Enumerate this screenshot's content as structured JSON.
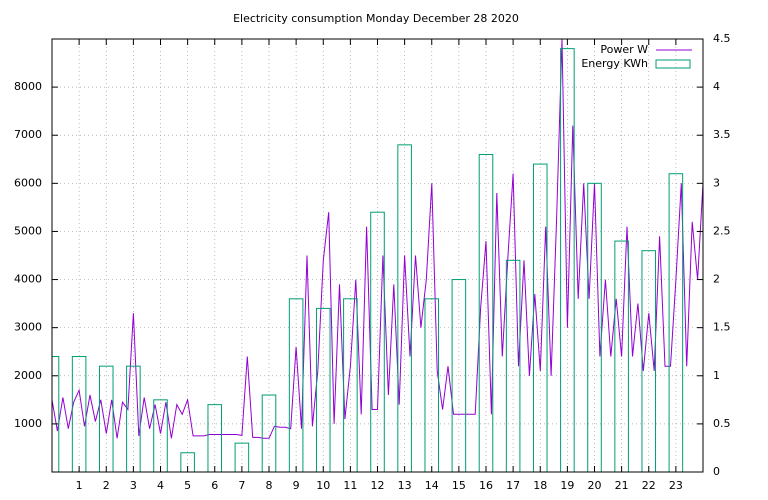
{
  "chart_data": {
    "type": "line",
    "title": "Electricity consumption Monday December 28 2020",
    "xlim": [
      0,
      24
    ],
    "xticks": [
      1,
      2,
      3,
      4,
      5,
      6,
      7,
      8,
      9,
      10,
      11,
      12,
      13,
      14,
      15,
      16,
      17,
      18,
      19,
      20,
      21,
      22,
      23
    ],
    "ylim": [
      0,
      9000
    ],
    "yticks": [
      1000,
      2000,
      3000,
      4000,
      5000,
      6000,
      7000,
      8000
    ],
    "y2lim": [
      0,
      4.5
    ],
    "y2ticks": [
      0,
      0.5,
      1,
      1.5,
      2,
      2.5,
      3,
      3.5,
      4,
      4.5
    ],
    "grid": true,
    "legend": "top-right",
    "series": [
      {
        "name": "Power W",
        "color": "#9400d3",
        "x": [
          0,
          0.2,
          0.4,
          0.6,
          0.8,
          1,
          1.2,
          1.4,
          1.6,
          1.8,
          2,
          2.2,
          2.4,
          2.6,
          2.8,
          3,
          3.2,
          3.4,
          3.6,
          3.8,
          4,
          4.2,
          4.4,
          4.6,
          4.8,
          5,
          5.2,
          5.4,
          5.6,
          5.8,
          6,
          6.2,
          6.4,
          6.6,
          6.8,
          7,
          7.2,
          7.4,
          7.6,
          7.8,
          8,
          8.2,
          8.4,
          8.6,
          8.8,
          9,
          9.2,
          9.4,
          9.6,
          9.8,
          10,
          10.2,
          10.4,
          10.6,
          10.8,
          11,
          11.2,
          11.4,
          11.6,
          11.8,
          12,
          12.2,
          12.4,
          12.6,
          12.8,
          13,
          13.2,
          13.4,
          13.6,
          13.8,
          14,
          14.2,
          14.4,
          14.6,
          14.8,
          15,
          15.2,
          15.4,
          15.6,
          15.8,
          16,
          16.2,
          16.4,
          16.6,
          16.8,
          17,
          17.2,
          17.4,
          17.6,
          17.8,
          18,
          18.2,
          18.4,
          18.6,
          18.8,
          19,
          19.2,
          19.4,
          19.6,
          19.8,
          20,
          20.2,
          20.4,
          20.6,
          20.8,
          21,
          21.2,
          21.4,
          21.6,
          21.8,
          22,
          22.2,
          22.4,
          22.6,
          22.8,
          23,
          23.2,
          23.4,
          23.6,
          23.8,
          24
        ],
        "values": [
          1500,
          850,
          1550,
          900,
          1450,
          1700,
          950,
          1600,
          1050,
          1500,
          800,
          1500,
          700,
          1450,
          1300,
          3300,
          750,
          1550,
          900,
          1400,
          800,
          1450,
          700,
          1400,
          1200,
          1500,
          750,
          750,
          750,
          780,
          780,
          780,
          780,
          780,
          780,
          760,
          2400,
          720,
          720,
          700,
          700,
          950,
          930,
          930,
          900,
          2600,
          900,
          4500,
          950,
          2100,
          4400,
          5400,
          1000,
          3900,
          1100,
          2200,
          4000,
          1200,
          5100,
          1300,
          1300,
          4500,
          1600,
          3900,
          1400,
          4500,
          2400,
          4500,
          3000,
          4000,
          6000,
          2100,
          1300,
          2200,
          1200,
          1200,
          1200,
          1200,
          1200,
          3400,
          4800,
          1200,
          5800,
          2400,
          4400,
          6200,
          2200,
          4400,
          2000,
          3700,
          2100,
          5100,
          2000,
          5200,
          9000,
          3000,
          7200,
          3600,
          6000,
          3600,
          6000,
          2400,
          4000,
          2400,
          3600,
          2400,
          5100,
          2400,
          3500,
          2100,
          3300,
          2100,
          4900,
          2200,
          2200,
          4000,
          6000,
          2200,
          5200,
          4000,
          6000
        ]
      },
      {
        "name": "Energy KWh",
        "color": "#009e73",
        "type": "bar",
        "axis": "y2",
        "x": [
          0,
          1,
          2,
          3,
          4,
          5,
          6,
          7,
          8,
          9,
          10,
          11,
          12,
          13,
          14,
          15,
          16,
          17,
          18,
          19,
          20,
          21,
          22,
          23
        ],
        "values": [
          1.2,
          1.2,
          1.1,
          1.1,
          0.75,
          0.2,
          0.7,
          0.3,
          0.8,
          1.8,
          1.7,
          1.8,
          2.7,
          3.4,
          1.8,
          2.0,
          3.3,
          2.2,
          3.2,
          4.4,
          3.0,
          2.4,
          2.3,
          3.1
        ]
      }
    ]
  }
}
